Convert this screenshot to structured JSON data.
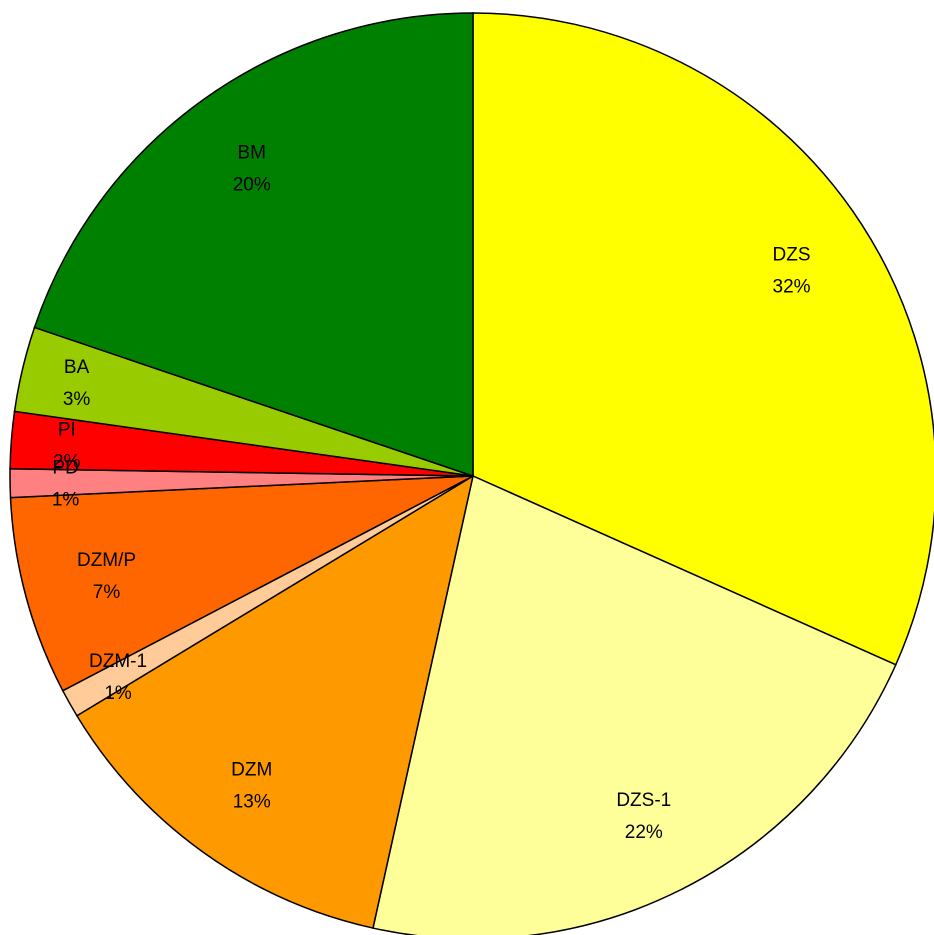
{
  "chart_data": {
    "type": "pie",
    "categories": [
      "DZS",
      "DZS-1",
      "DZM",
      "DZM-1",
      "DZM/P",
      "PD",
      "PI",
      "BA",
      "BM"
    ],
    "values": [
      32,
      22,
      13,
      1,
      7,
      1,
      2,
      3,
      20
    ],
    "value_labels": [
      "32%",
      "22%",
      "13%",
      "1%",
      "7%",
      "1%",
      "2%",
      "3%",
      "20%"
    ],
    "colors": [
      "#ffff00",
      "#ffff99",
      "#ff9900",
      "#ffcc99",
      "#ff6600",
      "#ff8080",
      "#ff0000",
      "#99cc00",
      "#008000"
    ]
  }
}
